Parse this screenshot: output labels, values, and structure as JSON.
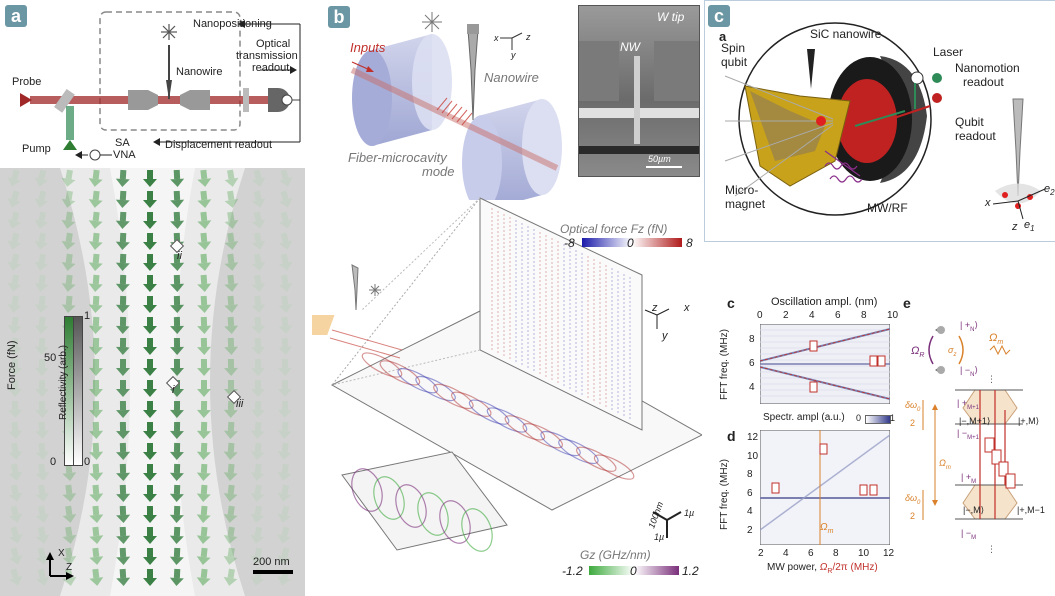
{
  "panel_a": {
    "letter": "a",
    "labels": {
      "probe": "Probe",
      "pump": "Pump",
      "nanowire": "Nanowire",
      "nanopositioning": "Nanopositioning",
      "optical_readout_1": "Optical",
      "optical_readout_2": "transmission",
      "optical_readout_3": "readout",
      "sa": "SA",
      "vna": "VNA",
      "displacement_readout": "Displacement readout"
    },
    "colorbar": {
      "force_label": "Force (fN)",
      "reflectivity_label": "Reflectivity (arb.)",
      "tick_top_left": "50",
      "tick_bottom_left": "0",
      "tick_top_right": "1",
      "tick_bottom_right": "0"
    },
    "markers": {
      "i": "i",
      "ii": "ii",
      "iii": "iii"
    },
    "scalebar": "200 nm",
    "axes": {
      "x": "X",
      "z": "Z"
    }
  },
  "panel_b": {
    "letter": "b",
    "labels": {
      "inputs": "Inputs",
      "nanowire": "Nanowire",
      "cavity_1": "Fiber-microcavity",
      "cavity_2": "mode",
      "w_tip": "W tip",
      "nw": "NW",
      "scale": "50µm",
      "ax_x": "x",
      "ax_y": "y",
      "ax_z": "z"
    },
    "force_colorbar": {
      "title": "Optical force Fz (fN)",
      "min": "-8",
      "mid": "0",
      "max": "8"
    },
    "gz_colorbar": {
      "title": "Gz (GHz/nm)",
      "min": "-1.2",
      "mid": "0",
      "max": "1.2"
    },
    "scale_labels": {
      "a": "100nm",
      "b": "1µ",
      "c": "1µ"
    }
  },
  "panel_c": {
    "letter": "c",
    "sub_a": "a",
    "labels": {
      "spin_qubit_1": "Spin",
      "spin_qubit_2": "qubit",
      "sic_nanowire": "SiC nanowire",
      "laser": "Laser",
      "nanomotion_1": "Nanomotion",
      "nanomotion_2": "readout",
      "qubit_readout_1": "Qubit",
      "qubit_readout_2": "readout",
      "micromagnet_1": "Micro-",
      "micromagnet_2": "magnet",
      "mw_rf": "MW/RF",
      "e1": "e",
      "e1_sub": "1",
      "e2": "e",
      "e2_sub": "2",
      "x": "x",
      "z": "z"
    }
  },
  "panel_cd": {
    "c_letter": "c",
    "d_letter": "d",
    "c_top_axis": "Oscillation ampl. (nm)",
    "c_top_ticks": [
      "0",
      "2",
      "4",
      "6",
      "8",
      "10"
    ],
    "c_ylabel": "FFT freq. (MHz)",
    "c_yticks": [
      "8",
      "6",
      "4"
    ],
    "spectral_label": "Spectr. ampl (a.u.)",
    "spectral_min": "0",
    "spectral_max": "1",
    "d_ylabel": "FFT freq. (MHz)",
    "d_yticks": [
      "12",
      "10",
      "8",
      "6",
      "4",
      "2"
    ],
    "d_xticks": [
      "2",
      "4",
      "6",
      "8",
      "10",
      "12"
    ],
    "d_xlabel_pre": "MW power, ",
    "d_xlabel_italic": "Ω",
    "d_xlabel_sub": "R",
    "d_xlabel_post": "/2π (MHz)",
    "omega_m": "Ω",
    "omega_m_sub": "m"
  },
  "panel_e": {
    "letter": "e",
    "omega_r": "Ω",
    "omega_r_sub": "R",
    "omega_m": "Ω",
    "omega_m_sub": "m",
    "sigma_z": "σ",
    "sigma_z_sub": "z",
    "plus_n": "| +",
    "plus_n_sub": "N",
    "minus_n": "| −",
    "minus_n_sub": "N",
    "frac_top": "δω",
    "frac_top_sub": "0",
    "frac_bottom": "2",
    "omega_m_mid": "Ω",
    "omega_m_mid_sub": "m",
    "state_plus_m1": "| +",
    "state_plus_m1_sub": "M+1",
    "state_minus_m1": "| −",
    "state_minus_m1_sub": "M+1",
    "ket_minus_m1": "|−,M+1⟩",
    "ket_plus_m": "|+,M⟩",
    "state_plus_m": "| +",
    "state_plus_m_sub": "M",
    "ket_minus_m": "|−,M⟩",
    "ket_plus_m_minus": "|+,M−1",
    "state_minus_m": "| −",
    "state_minus_m_sub": "M"
  }
}
